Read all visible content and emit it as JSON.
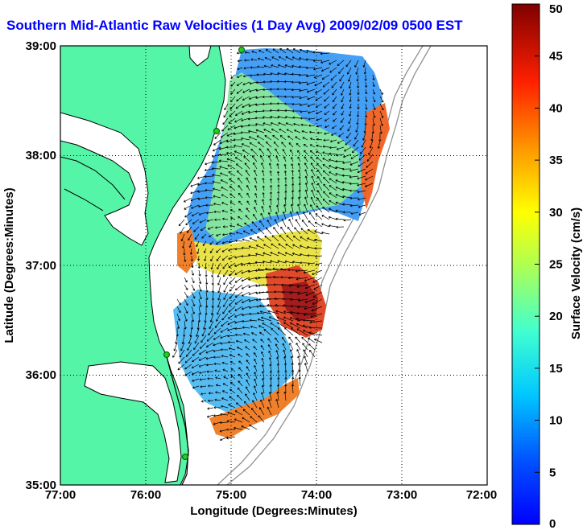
{
  "title": "Southern Mid-Atlantic Raw Velocities (1 Day Avg) 2009/02/09 0500 EST",
  "x_axis": {
    "label": "Longitude (Degrees:Minutes)",
    "ticks": [
      "77:00",
      "76:00",
      "75:00",
      "74:00",
      "73:00",
      "72:00"
    ]
  },
  "y_axis": {
    "label": "Latitude (Degrees:Minutes)",
    "ticks": [
      "39:00",
      "38:00",
      "37:00",
      "36:00",
      "35:00"
    ]
  },
  "colorbar": {
    "label": "Surface Velocity (cm/s)",
    "ticks": [
      "50",
      "45",
      "40",
      "35",
      "30",
      "25",
      "20",
      "15",
      "10",
      "5",
      "0"
    ],
    "min": 0,
    "max": 50
  },
  "colors": {
    "title": "#0000ff",
    "land": "#55f5a8",
    "water": "#ffffff",
    "coastline": "#000000",
    "bathymetry": "#909090",
    "station": "#22cc22"
  },
  "map_extent": {
    "lon_west": -77,
    "lon_east": -72,
    "lat_south": 35,
    "lat_north": 39
  }
}
